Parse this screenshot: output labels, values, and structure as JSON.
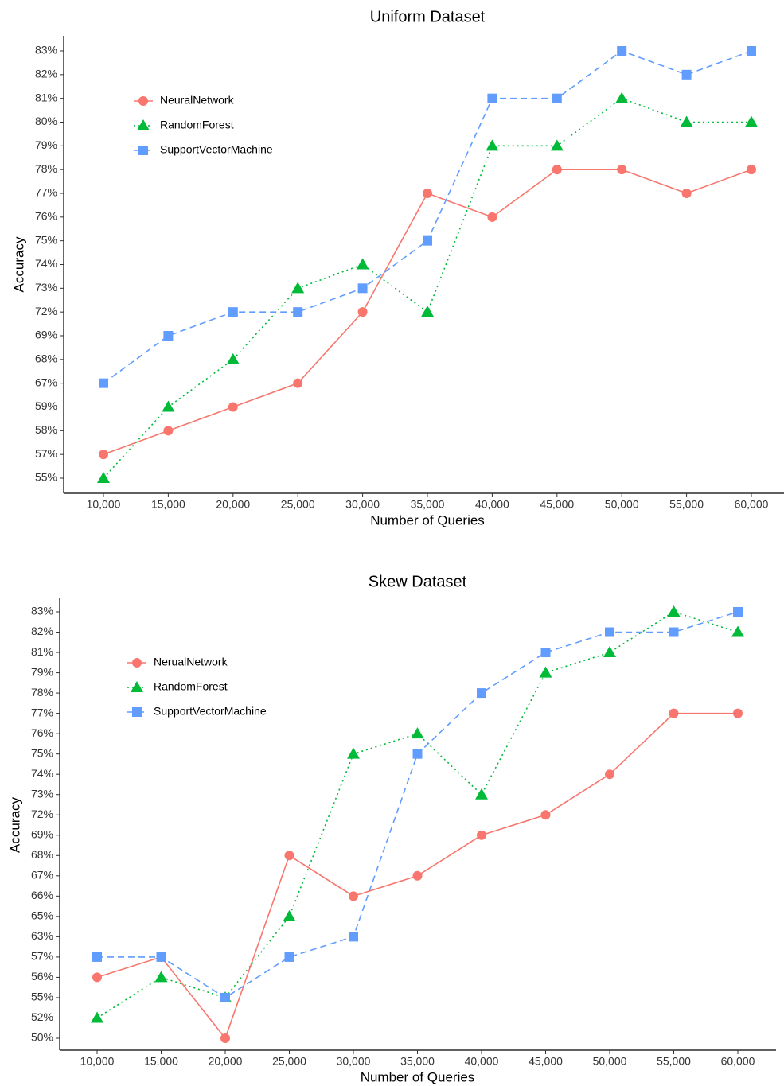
{
  "chart_data": [
    {
      "type": "line",
      "title": "Uniform Dataset",
      "x_label": "Number of Queries",
      "y_label": "Accuracy",
      "y_scale": "ordinal",
      "legend": "upper left",
      "x": [
        10000,
        15000,
        20000,
        25000,
        30000,
        35000,
        40000,
        45000,
        50000,
        55000,
        60000
      ],
      "xlim": [
        10000,
        60000
      ],
      "xticks": [
        {
          "value": 10000,
          "label": "10,000"
        },
        {
          "value": 15000,
          "label": "15,000"
        },
        {
          "value": 20000,
          "label": "20,000"
        },
        {
          "value": 25000,
          "label": "25,000"
        },
        {
          "value": 30000,
          "label": "30,000"
        },
        {
          "value": 35000,
          "label": "35,000"
        },
        {
          "value": 40000,
          "label": "40,000"
        },
        {
          "value": 45000,
          "label": "45,000"
        },
        {
          "value": 50000,
          "label": "50,000"
        },
        {
          "value": 55000,
          "label": "55,000"
        },
        {
          "value": 60000,
          "label": "60,000"
        }
      ],
      "ylim": [
        55,
        83
      ],
      "yticks": [
        {
          "value": 55,
          "label": "55%"
        },
        {
          "value": 57,
          "label": "57%"
        },
        {
          "value": 58,
          "label": "58%"
        },
        {
          "value": 59,
          "label": "59%"
        },
        {
          "value": 67,
          "label": "67%"
        },
        {
          "value": 68,
          "label": "68%"
        },
        {
          "value": 69,
          "label": "69%"
        },
        {
          "value": 72,
          "label": "72%"
        },
        {
          "value": 73,
          "label": "73%"
        },
        {
          "value": 74,
          "label": "74%"
        },
        {
          "value": 75,
          "label": "75%"
        },
        {
          "value": 76,
          "label": "76%"
        },
        {
          "value": 77,
          "label": "77%"
        },
        {
          "value": 78,
          "label": "78%"
        },
        {
          "value": 79,
          "label": "79%"
        },
        {
          "value": 80,
          "label": "80%"
        },
        {
          "value": 81,
          "label": "81%"
        },
        {
          "value": 82,
          "label": "82%"
        },
        {
          "value": 83,
          "label": "83%"
        }
      ],
      "series": [
        {
          "name": "NeuralNetwork",
          "color": "#F8766D",
          "line_style": "solid",
          "marker": "circle",
          "values": [
            57,
            58,
            59,
            67,
            72,
            77,
            76,
            78,
            78,
            77,
            78
          ]
        },
        {
          "name": "RandomForest",
          "color": "#00BA38",
          "line_style": "dotted",
          "marker": "triangle",
          "values": [
            55,
            59,
            68,
            73,
            74,
            72,
            79,
            79,
            81,
            80,
            80
          ]
        },
        {
          "name": "SupportVectorMachine",
          "color": "#619CFF",
          "line_style": "dashed",
          "marker": "square",
          "values": [
            67,
            69,
            72,
            72,
            73,
            75,
            81,
            81,
            83,
            82,
            83
          ]
        }
      ]
    },
    {
      "type": "line",
      "title": "Skew Dataset",
      "x_label": "Number of Queries",
      "y_label": "Accuracy",
      "y_scale": "ordinal",
      "legend": "upper left",
      "x": [
        10000,
        15000,
        20000,
        25000,
        30000,
        35000,
        40000,
        45000,
        50000,
        55000,
        60000
      ],
      "xlim": [
        10000,
        60000
      ],
      "xticks": [
        {
          "value": 10000,
          "label": "10,000"
        },
        {
          "value": 15000,
          "label": "15,000"
        },
        {
          "value": 20000,
          "label": "20,000"
        },
        {
          "value": 25000,
          "label": "25,000"
        },
        {
          "value": 30000,
          "label": "30,000"
        },
        {
          "value": 35000,
          "label": "35,000"
        },
        {
          "value": 40000,
          "label": "40,000"
        },
        {
          "value": 45000,
          "label": "45,000"
        },
        {
          "value": 50000,
          "label": "50,000"
        },
        {
          "value": 55000,
          "label": "55,000"
        },
        {
          "value": 60000,
          "label": "60,000"
        }
      ],
      "ylim": [
        50,
        83
      ],
      "yticks": [
        {
          "value": 50,
          "label": "50%"
        },
        {
          "value": 52,
          "label": "52%"
        },
        {
          "value": 55,
          "label": "55%"
        },
        {
          "value": 56,
          "label": "56%"
        },
        {
          "value": 57,
          "label": "57%"
        },
        {
          "value": 63,
          "label": "63%"
        },
        {
          "value": 65,
          "label": "65%"
        },
        {
          "value": 66,
          "label": "66%"
        },
        {
          "value": 67,
          "label": "67%"
        },
        {
          "value": 68,
          "label": "68%"
        },
        {
          "value": 69,
          "label": "69%"
        },
        {
          "value": 72,
          "label": "72%"
        },
        {
          "value": 73,
          "label": "73%"
        },
        {
          "value": 74,
          "label": "74%"
        },
        {
          "value": 75,
          "label": "75%"
        },
        {
          "value": 76,
          "label": "76%"
        },
        {
          "value": 77,
          "label": "77%"
        },
        {
          "value": 78,
          "label": "78%"
        },
        {
          "value": 79,
          "label": "79%"
        },
        {
          "value": 81,
          "label": "81%"
        },
        {
          "value": 82,
          "label": "82%"
        },
        {
          "value": 83,
          "label": "83%"
        }
      ],
      "series": [
        {
          "name": "NerualNetwork",
          "color": "#F8766D",
          "line_style": "solid",
          "marker": "circle",
          "values": [
            56,
            57,
            50,
            68,
            66,
            67,
            69,
            72,
            74,
            77,
            77
          ]
        },
        {
          "name": "RandomForest",
          "color": "#00BA38",
          "line_style": "dotted",
          "marker": "triangle",
          "values": [
            52,
            56,
            55,
            65,
            75,
            76,
            73,
            79,
            81,
            83,
            82
          ]
        },
        {
          "name": "SupportVectorMachine",
          "color": "#619CFF",
          "line_style": "dashed",
          "marker": "square",
          "values": [
            57,
            57,
            55,
            57,
            63,
            75,
            78,
            81,
            82,
            82,
            83
          ]
        }
      ]
    }
  ]
}
